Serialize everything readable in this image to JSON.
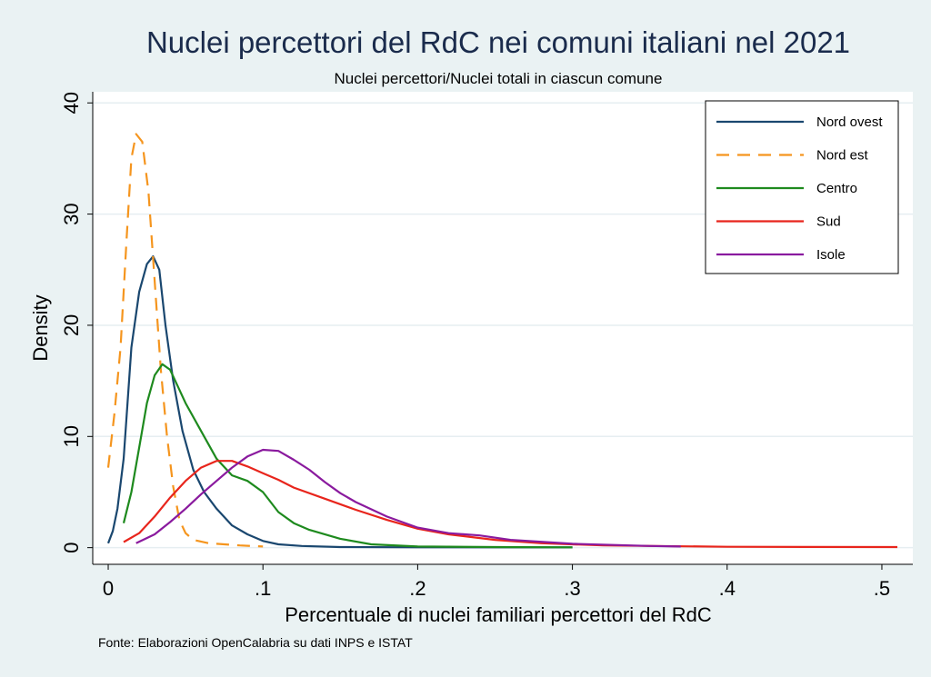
{
  "chart_data": {
    "type": "line",
    "title": "Nuclei percettori del RdC nei comuni italiani nel 2021",
    "subtitle": "Nuclei percettori/Nuclei totali in ciascun comune",
    "xlabel": "Percentuale di nuclei familiari percettori del RdC",
    "ylabel": "Density",
    "note": "Fonte: Elaborazioni OpenCalabria su dati INPS e ISTAT",
    "xlim": [
      -0.01,
      0.52
    ],
    "ylim": [
      -1.5,
      41
    ],
    "x_ticks": [
      {
        "value": 0,
        "label": "0"
      },
      {
        "value": 0.1,
        "label": ".1"
      },
      {
        "value": 0.2,
        "label": ".2"
      },
      {
        "value": 0.3,
        "label": ".3"
      },
      {
        "value": 0.4,
        "label": ".4"
      },
      {
        "value": 0.5,
        "label": ".5"
      }
    ],
    "y_ticks": [
      {
        "value": 0,
        "label": "0"
      },
      {
        "value": 10,
        "label": "10"
      },
      {
        "value": 20,
        "label": "20"
      },
      {
        "value": 30,
        "label": "30"
      },
      {
        "value": 40,
        "label": "40"
      }
    ],
    "grid": true,
    "legend_position": "top-right",
    "series": [
      {
        "name": "Nord ovest",
        "color": "#1a476f",
        "dash": "solid",
        "points": [
          [
            0,
            0.4
          ],
          [
            0.003,
            1.5
          ],
          [
            0.006,
            3.5
          ],
          [
            0.01,
            8
          ],
          [
            0.015,
            18
          ],
          [
            0.02,
            23
          ],
          [
            0.025,
            25.5
          ],
          [
            0.029,
            26.2
          ],
          [
            0.033,
            25
          ],
          [
            0.037,
            20
          ],
          [
            0.042,
            15
          ],
          [
            0.048,
            10.5
          ],
          [
            0.055,
            7
          ],
          [
            0.062,
            5
          ],
          [
            0.07,
            3.5
          ],
          [
            0.08,
            2
          ],
          [
            0.09,
            1.2
          ],
          [
            0.1,
            0.6
          ],
          [
            0.11,
            0.3
          ],
          [
            0.125,
            0.15
          ],
          [
            0.15,
            0.05
          ],
          [
            0.2,
            0.03
          ],
          [
            0.3,
            0.02
          ]
        ]
      },
      {
        "name": "Nord est",
        "color": "#f5951e",
        "dash": "dashed",
        "points": [
          [
            0,
            7.2
          ],
          [
            0.004,
            12
          ],
          [
            0.008,
            18
          ],
          [
            0.012,
            28
          ],
          [
            0.015,
            35
          ],
          [
            0.018,
            37.2
          ],
          [
            0.022,
            36.5
          ],
          [
            0.026,
            32
          ],
          [
            0.03,
            24
          ],
          [
            0.034,
            16
          ],
          [
            0.038,
            10
          ],
          [
            0.042,
            5.5
          ],
          [
            0.046,
            2.5
          ],
          [
            0.05,
            1.3
          ],
          [
            0.055,
            0.7
          ],
          [
            0.065,
            0.4
          ],
          [
            0.075,
            0.3
          ],
          [
            0.085,
            0.2
          ],
          [
            0.1,
            0.1
          ]
        ]
      },
      {
        "name": "Centro",
        "color": "#1e8a1e",
        "dash": "solid",
        "points": [
          [
            0.01,
            2.2
          ],
          [
            0.015,
            5
          ],
          [
            0.02,
            9
          ],
          [
            0.025,
            13
          ],
          [
            0.03,
            15.5
          ],
          [
            0.035,
            16.5
          ],
          [
            0.04,
            16
          ],
          [
            0.045,
            14.5
          ],
          [
            0.05,
            13
          ],
          [
            0.06,
            10.5
          ],
          [
            0.07,
            8
          ],
          [
            0.08,
            6.5
          ],
          [
            0.09,
            6
          ],
          [
            0.1,
            5
          ],
          [
            0.11,
            3.2
          ],
          [
            0.12,
            2.2
          ],
          [
            0.13,
            1.6
          ],
          [
            0.15,
            0.8
          ],
          [
            0.17,
            0.3
          ],
          [
            0.2,
            0.1
          ],
          [
            0.25,
            0.05
          ],
          [
            0.3,
            0.03
          ]
        ]
      },
      {
        "name": "Sud",
        "color": "#e8251c",
        "dash": "solid",
        "points": [
          [
            0.01,
            0.5
          ],
          [
            0.02,
            1.3
          ],
          [
            0.03,
            2.8
          ],
          [
            0.04,
            4.5
          ],
          [
            0.05,
            6
          ],
          [
            0.06,
            7.2
          ],
          [
            0.07,
            7.8
          ],
          [
            0.08,
            7.8
          ],
          [
            0.09,
            7.3
          ],
          [
            0.1,
            6.7
          ],
          [
            0.11,
            6.1
          ],
          [
            0.12,
            5.4
          ],
          [
            0.14,
            4.4
          ],
          [
            0.16,
            3.4
          ],
          [
            0.18,
            2.5
          ],
          [
            0.2,
            1.7
          ],
          [
            0.22,
            1.2
          ],
          [
            0.25,
            0.7
          ],
          [
            0.28,
            0.4
          ],
          [
            0.32,
            0.2
          ],
          [
            0.4,
            0.08
          ],
          [
            0.45,
            0.06
          ],
          [
            0.51,
            0.05
          ]
        ]
      },
      {
        "name": "Isole",
        "color": "#8a1a9e",
        "dash": "solid",
        "points": [
          [
            0.018,
            0.4
          ],
          [
            0.03,
            1.2
          ],
          [
            0.04,
            2.3
          ],
          [
            0.05,
            3.5
          ],
          [
            0.06,
            4.8
          ],
          [
            0.07,
            6
          ],
          [
            0.08,
            7.2
          ],
          [
            0.09,
            8.2
          ],
          [
            0.1,
            8.8
          ],
          [
            0.11,
            8.7
          ],
          [
            0.12,
            7.9
          ],
          [
            0.13,
            7
          ],
          [
            0.14,
            5.9
          ],
          [
            0.15,
            4.9
          ],
          [
            0.16,
            4.1
          ],
          [
            0.18,
            2.8
          ],
          [
            0.2,
            1.8
          ],
          [
            0.22,
            1.3
          ],
          [
            0.24,
            1.1
          ],
          [
            0.26,
            0.7
          ],
          [
            0.3,
            0.35
          ],
          [
            0.35,
            0.15
          ],
          [
            0.37,
            0.1
          ]
        ]
      }
    ]
  }
}
